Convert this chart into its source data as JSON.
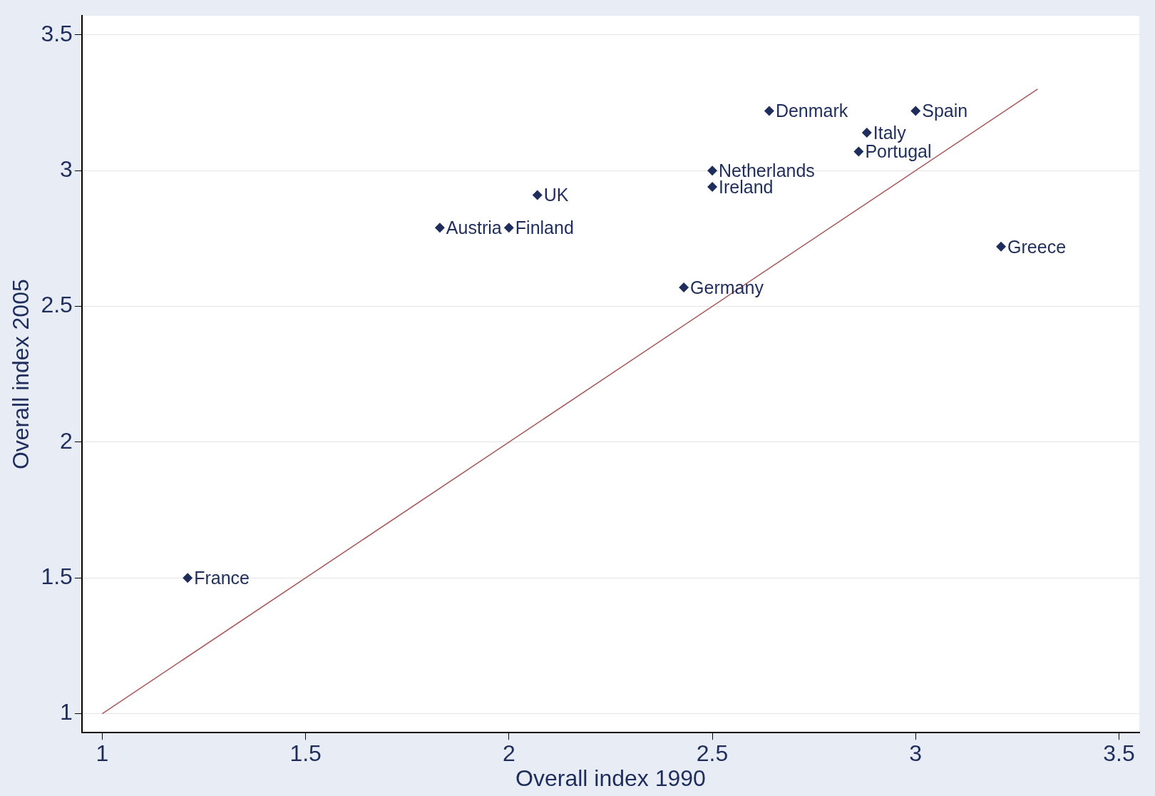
{
  "chart_data": {
    "type": "scatter",
    "xlabel": "Overall index 1990",
    "ylabel": "Overall index 2005",
    "xlim": [
      0.95,
      3.55
    ],
    "ylim": [
      0.93,
      3.57
    ],
    "xticks": [
      1,
      1.5,
      2,
      2.5,
      3,
      3.5
    ],
    "yticks": [
      1,
      1.5,
      2,
      2.5,
      3,
      3.5
    ],
    "grid": "y",
    "series": [
      {
        "marker": "diamond",
        "color": "#1f2d5c",
        "x": [
          1.21,
          1.83,
          2.0,
          2.07,
          2.43,
          2.5,
          2.5,
          2.64,
          3.0,
          2.88,
          2.86,
          3.21
        ],
        "values": [
          1.5,
          2.79,
          2.79,
          2.91,
          2.57,
          3.0,
          2.94,
          3.22,
          3.22,
          3.14,
          3.07,
          2.72
        ],
        "value_labels": [
          "France",
          "Austria",
          "Finland",
          "UK",
          "Germany",
          "Netherlands",
          "Ireland",
          "Denmark",
          "Spain",
          "Italy",
          "Portugal",
          "Greece"
        ]
      },
      {
        "type": "line",
        "marker": "none",
        "color": "#a8585a",
        "x": [
          1,
          3.3
        ],
        "values": [
          1,
          3.3
        ]
      }
    ]
  }
}
